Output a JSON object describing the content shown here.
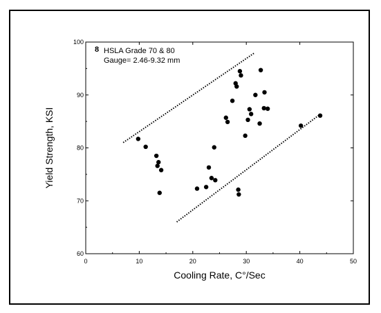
{
  "chart_data": {
    "type": "scatter",
    "panel_label": "8",
    "annotation_lines": [
      "HSLA Grade 70 & 80",
      "Gauge= 2.46-9.32 mm"
    ],
    "xlabel": "Cooling Rate, C°/Sec",
    "ylabel": "Yield Strength, KSI",
    "xlim": [
      0,
      50
    ],
    "ylim": [
      60,
      100
    ],
    "x_ticks": [
      "0",
      "10",
      "20",
      "30",
      "40",
      "50"
    ],
    "y_ticks": [
      "60",
      "70",
      "80",
      "90",
      "100"
    ],
    "grid": false,
    "marker_color": "#000000",
    "series": [
      {
        "points": [
          [
            9.8,
            81.7
          ],
          [
            11.2,
            80.2
          ],
          [
            13.2,
            78.5
          ],
          [
            13.6,
            77.3
          ],
          [
            13.4,
            76.6
          ],
          [
            14.1,
            75.8
          ],
          [
            13.8,
            71.5
          ],
          [
            20.8,
            72.3
          ],
          [
            22.5,
            72.6
          ],
          [
            23.0,
            76.3
          ],
          [
            23.5,
            74.3
          ],
          [
            24.2,
            73.9
          ],
          [
            24.0,
            80.1
          ],
          [
            26.2,
            85.7
          ],
          [
            26.5,
            84.9
          ],
          [
            27.4,
            88.9
          ],
          [
            28.0,
            92.2
          ],
          [
            28.2,
            91.6
          ],
          [
            28.8,
            94.5
          ],
          [
            29.0,
            93.7
          ],
          [
            28.5,
            72.1
          ],
          [
            28.6,
            71.2
          ],
          [
            29.8,
            82.3
          ],
          [
            30.3,
            85.3
          ],
          [
            30.6,
            87.3
          ],
          [
            30.9,
            86.4
          ],
          [
            31.7,
            90.0
          ],
          [
            32.5,
            84.6
          ],
          [
            32.7,
            94.7
          ],
          [
            33.4,
            90.5
          ],
          [
            33.3,
            87.5
          ],
          [
            34.0,
            87.4
          ],
          [
            40.2,
            84.2
          ],
          [
            43.8,
            86.1
          ]
        ]
      }
    ],
    "reference_lines": [
      {
        "style": "dotted",
        "x": [
          7,
          31.6
        ],
        "y": [
          81,
          98
        ]
      },
      {
        "style": "dotted",
        "x": [
          17,
          44
        ],
        "y": [
          66,
          86.5
        ]
      }
    ]
  }
}
